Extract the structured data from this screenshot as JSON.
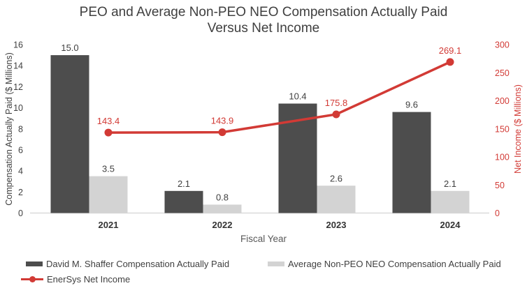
{
  "title": {
    "line1": "PEO and Average Non-PEO NEO Compensation Actually Paid",
    "line2": "Versus Net Income"
  },
  "axes": {
    "left_label": "Compensation Actually Paid ($ Millions)",
    "right_label": "Net Income ($ Millions)",
    "x_label": "Fiscal Year"
  },
  "legend": {
    "item1": "David M. Shaffer Compensation Actually Paid",
    "item2": "Average Non-PEO NEO Compensation Actually Paid",
    "item3": "EnerSys Net Income"
  },
  "colors": {
    "bar_dark": "#4d4d4d",
    "bar_light": "#d3d3d3",
    "line_red": "#d23a35",
    "tick_text": "#404040",
    "axis_line": "#d9d9d9"
  },
  "chart_data": {
    "type": "bar+line",
    "title": "PEO and Average Non-PEO NEO Compensation Actually Paid Versus Net Income",
    "categories": [
      "2021",
      "2022",
      "2023",
      "2024"
    ],
    "series": [
      {
        "name": "David M. Shaffer Compensation Actually Paid",
        "type": "bar",
        "axis": "left",
        "color": "#4d4d4d",
        "values": [
          15.0,
          2.1,
          10.4,
          9.6
        ]
      },
      {
        "name": "Average Non-PEO NEO Compensation Actually Paid",
        "type": "bar",
        "axis": "left",
        "color": "#d3d3d3",
        "values": [
          3.5,
          0.8,
          2.6,
          2.1
        ]
      },
      {
        "name": "EnerSys Net Income",
        "type": "line",
        "axis": "right",
        "color": "#d23a35",
        "values": [
          143.4,
          143.9,
          175.8,
          269.1
        ]
      }
    ],
    "xlabel": "Fiscal Year",
    "ylabel_left": "Compensation Actually Paid ($ Millions)",
    "ylabel_right": "Net Income ($ Millions)",
    "left_axis": {
      "min": 0,
      "max": 16,
      "ticks": [
        0,
        2,
        4,
        6,
        8,
        10,
        12,
        14,
        16
      ]
    },
    "right_axis": {
      "min": 0,
      "max": 300,
      "ticks": [
        0,
        50,
        100,
        150,
        200,
        250,
        300
      ]
    },
    "grid": false,
    "data_labels": true,
    "legend_position": "bottom"
  }
}
